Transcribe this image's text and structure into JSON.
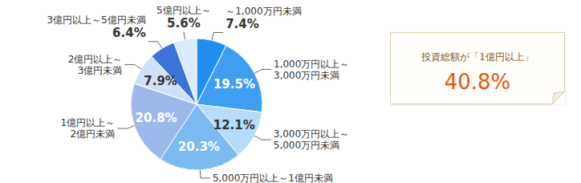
{
  "chart_data": {
    "type": "pie",
    "categories": [
      "～1,000万円未満",
      "1,000万円以上～\n3,000万円未満",
      "3,000万円以上～\n5,000万円未満",
      "5,000万円以上～1億円未満",
      "1億円以上～\n2億円未満",
      "2億円以上～\n3億円未満",
      "3億円以上～5億円未満",
      "5億円以上～"
    ],
    "values": [
      7.4,
      19.5,
      12.1,
      20.3,
      20.8,
      7.9,
      6.4,
      5.6
    ],
    "value_labels": [
      "7.4%",
      "19.5%",
      "12.1%",
      "20.3%",
      "20.8%",
      "7.9%",
      "6.4%",
      "5.6%"
    ],
    "colors": [
      "#1f8ef1",
      "#3f9ef0",
      "#b5dcfb",
      "#7cbaf2",
      "#9db8ea",
      "#cfe0f7",
      "#3b74d9",
      "#dce8fb"
    ],
    "data_labels": true,
    "annotations": [
      {
        "text": "投資総額が「1億円以上」",
        "value": 40.8,
        "label": "40.8%"
      }
    ]
  }
}
